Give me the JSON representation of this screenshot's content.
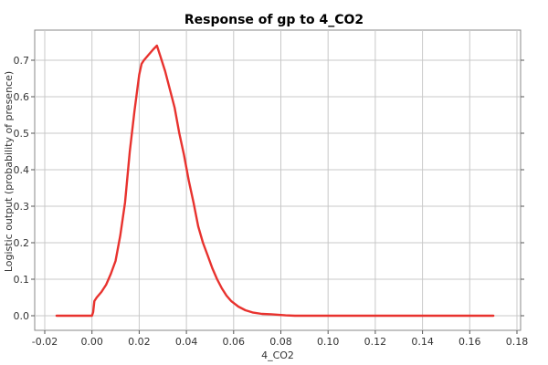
{
  "chart_data": {
    "type": "line",
    "title": "Response of gp to 4_CO2",
    "xlabel": "4_CO2",
    "ylabel": "Logistic output (probability of presence)",
    "xlim": [
      -0.02,
      0.18
    ],
    "ylim": [
      0.0,
      0.7
    ],
    "x_ticks": [
      -0.02,
      0.0,
      0.02,
      0.04,
      0.06,
      0.08,
      0.1,
      0.12,
      0.14,
      0.16,
      0.18
    ],
    "x_tick_labels": [
      "-0.02",
      "0.00",
      "0.02",
      "0.04",
      "0.06",
      "0.08",
      "0.10",
      "0.12",
      "0.14",
      "0.16",
      "0.18"
    ],
    "y_ticks": [
      0.0,
      0.1,
      0.2,
      0.3,
      0.4,
      0.5,
      0.6,
      0.7
    ],
    "y_tick_labels": [
      "0.0",
      "0.1",
      "0.2",
      "0.3",
      "0.4",
      "0.5",
      "0.6",
      "0.7"
    ],
    "grid": true,
    "legend": "none",
    "series": [
      {
        "color": "#e8322e",
        "x": [
          -0.015,
          0.0,
          0.0005,
          0.001,
          0.002,
          0.004,
          0.006,
          0.008,
          0.01,
          0.012,
          0.014,
          0.016,
          0.018,
          0.02,
          0.021,
          0.022,
          0.024,
          0.026,
          0.0275,
          0.029,
          0.031,
          0.033,
          0.035,
          0.037,
          0.039,
          0.041,
          0.043,
          0.045,
          0.047,
          0.049,
          0.051,
          0.053,
          0.055,
          0.057,
          0.059,
          0.062,
          0.065,
          0.068,
          0.072,
          0.076,
          0.08,
          0.082,
          0.086,
          0.1,
          0.12,
          0.14,
          0.16,
          0.17
        ],
        "y": [
          0.0,
          0.0,
          0.01,
          0.04,
          0.05,
          0.065,
          0.085,
          0.115,
          0.15,
          0.22,
          0.31,
          0.45,
          0.56,
          0.66,
          0.69,
          0.7,
          0.715,
          0.73,
          0.74,
          0.71,
          0.67,
          0.62,
          0.57,
          0.5,
          0.44,
          0.37,
          0.31,
          0.245,
          0.2,
          0.165,
          0.13,
          0.1,
          0.075,
          0.055,
          0.04,
          0.025,
          0.015,
          0.009,
          0.005,
          0.004,
          0.002,
          0.001,
          0.0,
          0.0,
          0.0,
          0.0,
          0.0,
          0.0
        ]
      }
    ]
  }
}
